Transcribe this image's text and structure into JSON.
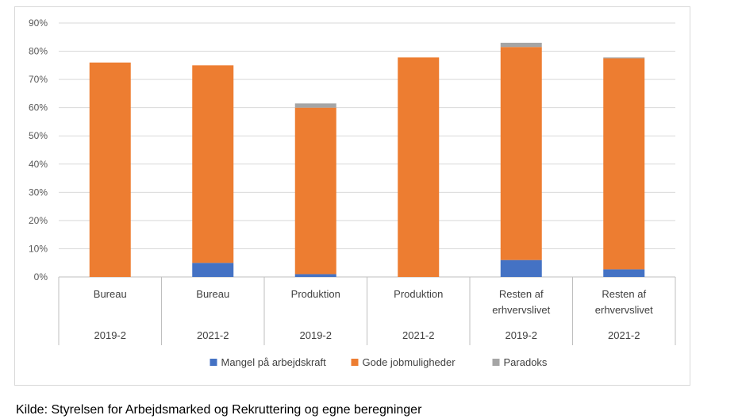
{
  "chart_data": {
    "type": "bar",
    "stacked": true,
    "categories": [
      {
        "name_lines": [
          "Bureau"
        ],
        "period": "2019-2"
      },
      {
        "name_lines": [
          "Bureau"
        ],
        "period": "2021-2"
      },
      {
        "name_lines": [
          "Produktion"
        ],
        "period": "2019-2"
      },
      {
        "name_lines": [
          "Produktion"
        ],
        "period": "2021-2"
      },
      {
        "name_lines": [
          "Resten af",
          "erhvervslivet"
        ],
        "period": "2019-2"
      },
      {
        "name_lines": [
          "Resten af",
          "erhvervslivet"
        ],
        "period": "2021-2"
      }
    ],
    "series": [
      {
        "name": "Mangel på arbejdskraft",
        "color": "#4472c4",
        "values": [
          0,
          5,
          1,
          0,
          6,
          2.7
        ]
      },
      {
        "name": "Gode jobmuligheder",
        "color": "#ed7d31",
        "values": [
          76,
          70,
          59,
          77.8,
          75.5,
          74.8
        ]
      },
      {
        "name": "Paradoks",
        "color": "#a5a5a5",
        "values": [
          0,
          0,
          1.5,
          0,
          1.5,
          0.3
        ]
      }
    ],
    "y_ticks": [
      "0%",
      "10%",
      "20%",
      "30%",
      "40%",
      "50%",
      "60%",
      "70%",
      "80%",
      "90%"
    ],
    "ylim": [
      0,
      90
    ],
    "grid": true,
    "legend_position": "bottom"
  },
  "source_note": "Kilde: Styrelsen for Arbejdsmarked og Rekruttering og egne beregninger"
}
